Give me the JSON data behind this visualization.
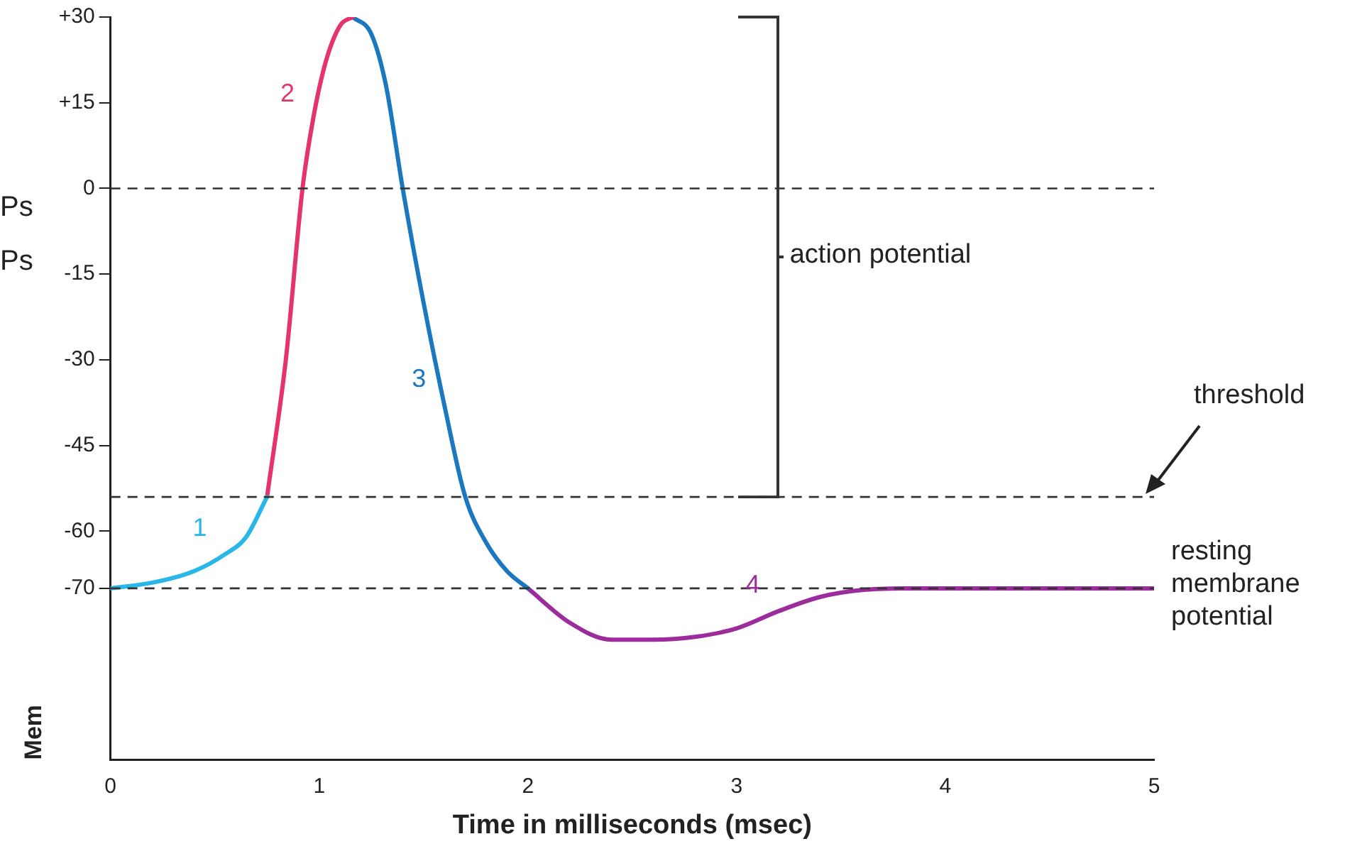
{
  "chart_data": {
    "type": "line",
    "xlabel": "Time in milliseconds (msec)",
    "ylabel": "Mem",
    "xlim": [
      0,
      5
    ],
    "xticks": [
      0,
      1,
      2,
      3,
      4,
      5
    ],
    "ylim": [
      -100,
      30
    ],
    "yticks": [
      {
        "value": 30,
        "label": "+30"
      },
      {
        "value": 15,
        "label": "+15"
      },
      0,
      -15,
      -30,
      -45,
      -60,
      -70
    ],
    "grid": false,
    "legend": false,
    "marker": "none",
    "line_style": "solid",
    "series": [
      {
        "name": "1",
        "color": "#29b6e8",
        "x": [
          0,
          0.2,
          0.4,
          0.55,
          0.65,
          0.75
        ],
        "values": [
          -70,
          -69,
          -67,
          -64,
          -61,
          -54
        ]
      },
      {
        "name": "2",
        "color": "#e5336c",
        "x": [
          0.75,
          0.84,
          0.92,
          0.97,
          1.03,
          1.1,
          1.16
        ],
        "values": [
          -54,
          -30,
          0,
          12,
          22,
          28.5,
          30
        ]
      },
      {
        "name": "3",
        "color": "#1b78c0",
        "x": [
          1.16,
          1.25,
          1.32,
          1.4,
          1.5,
          1.6,
          1.7,
          1.8,
          1.9,
          2.0
        ],
        "values": [
          30,
          27,
          18,
          0,
          -20,
          -38,
          -54,
          -62,
          -67,
          -70
        ]
      },
      {
        "name": "4",
        "color": "#9c2c9c",
        "x": [
          2.0,
          2.2,
          2.4,
          2.6,
          2.8,
          3.0,
          3.2,
          3.4,
          3.6,
          3.85,
          4.2,
          5
        ],
        "values": [
          -70,
          -76,
          -79,
          -79,
          -78.5,
          -77,
          -74,
          -71.5,
          -70.3,
          -70,
          -70,
          -70
        ]
      }
    ],
    "ref_lines": [
      {
        "axis": "y",
        "value": 0,
        "line_style": "dashed",
        "color": "#333333"
      },
      {
        "axis": "y",
        "value": -54,
        "line_style": "dashed",
        "color": "#333333",
        "label": "threshold"
      },
      {
        "axis": "y",
        "value": -70,
        "line_style": "dashed",
        "color": "#333333",
        "label": "resting membrane potential"
      }
    ],
    "annotations": [
      "Ps",
      "Ps",
      "action potential"
    ]
  }
}
